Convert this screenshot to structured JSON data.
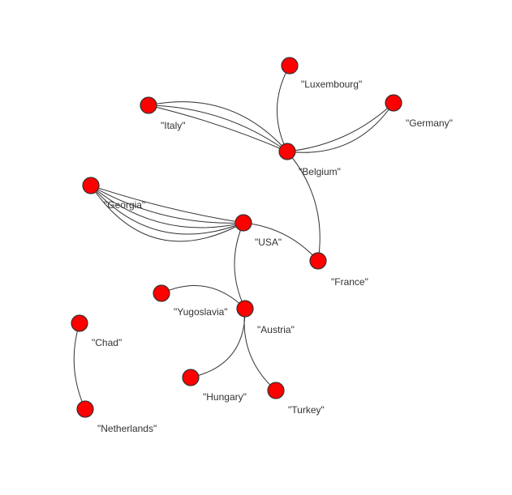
{
  "graph": {
    "node_color": "#ff0000",
    "edge_color": "#333333",
    "nodes": [
      {
        "id": "luxembourg",
        "label": "\"Luxembourg\""
      },
      {
        "id": "germany",
        "label": "\"Germany\""
      },
      {
        "id": "italy",
        "label": "\"Italy\""
      },
      {
        "id": "belgium",
        "label": "\"Belgium\""
      },
      {
        "id": "georgia",
        "label": "\"Georgia\""
      },
      {
        "id": "usa",
        "label": "\"USA\""
      },
      {
        "id": "france",
        "label": "\"France\""
      },
      {
        "id": "yugoslavia",
        "label": "\"Yugoslavia\""
      },
      {
        "id": "austria",
        "label": "\"Austria\""
      },
      {
        "id": "chad",
        "label": "\"Chad\""
      },
      {
        "id": "hungary",
        "label": "\"Hungary\""
      },
      {
        "id": "turkey",
        "label": "\"Turkey\""
      },
      {
        "id": "netherlands",
        "label": "\"Netherlands\""
      }
    ],
    "edges": [
      {
        "source": "luxembourg",
        "target": "belgium",
        "count": 1
      },
      {
        "source": "italy",
        "target": "belgium",
        "count": 3
      },
      {
        "source": "germany",
        "target": "belgium",
        "count": 2
      },
      {
        "source": "belgium",
        "target": "france",
        "count": 1
      },
      {
        "source": "georgia",
        "target": "usa",
        "count": 5
      },
      {
        "source": "usa",
        "target": "france",
        "count": 1
      },
      {
        "source": "usa",
        "target": "austria",
        "count": 1
      },
      {
        "source": "yugoslavia",
        "target": "austria",
        "count": 1
      },
      {
        "source": "austria",
        "target": "hungary",
        "count": 1
      },
      {
        "source": "austria",
        "target": "turkey",
        "count": 1
      },
      {
        "source": "chad",
        "target": "netherlands",
        "count": 1
      }
    ]
  }
}
